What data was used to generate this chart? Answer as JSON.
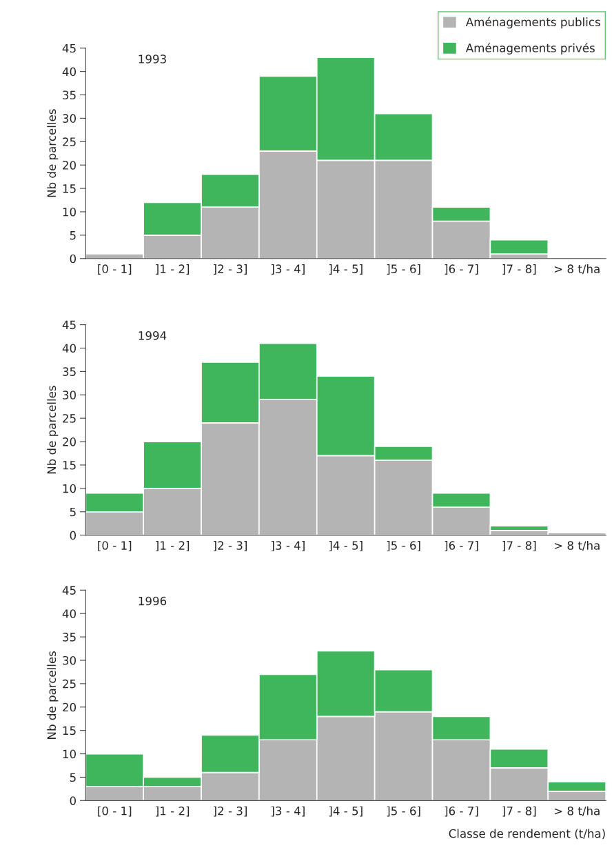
{
  "chart_data": [
    {
      "type": "bar",
      "stacked": true,
      "title": "1993",
      "ylabel": "Nb de parcelles",
      "categories": [
        "[0 - 1]",
        "]1 - 2]",
        "]2 - 3]",
        "]3 - 4]",
        "]4 - 5]",
        "]5 - 6]",
        "]6 - 7]",
        "]7 - 8]",
        "> 8 t/ha"
      ],
      "ylim": [
        0,
        45
      ],
      "yticks": [
        0,
        5,
        10,
        15,
        20,
        25,
        30,
        35,
        40,
        45
      ],
      "legend": "top right",
      "grid": false,
      "series": [
        {
          "name": "Aménagements publics",
          "color": "#b4b4b4",
          "values": [
            1,
            5,
            11,
            23,
            21,
            21,
            8,
            1,
            0
          ]
        },
        {
          "name": "Aménagements privés",
          "color": "#3fb65c",
          "values": [
            0,
            7,
            7,
            16,
            22,
            10,
            3,
            3,
            0
          ]
        }
      ]
    },
    {
      "type": "bar",
      "stacked": true,
      "title": "1994",
      "ylabel": "Nb de parcelles",
      "categories": [
        "[0 - 1]",
        "]1 - 2]",
        "]2 - 3]",
        "]3 - 4]",
        "]4 - 5]",
        "]5 - 6]",
        "]6 - 7]",
        "]7 - 8]",
        "> 8 t/ha"
      ],
      "ylim": [
        0,
        45
      ],
      "yticks": [
        0,
        5,
        10,
        15,
        20,
        25,
        30,
        35,
        40,
        45
      ],
      "grid": false,
      "series": [
        {
          "color": "#b4b4b4",
          "values": [
            5,
            10,
            24,
            29,
            17,
            16,
            6,
            1,
            0.5
          ]
        },
        {
          "color": "#3fb65c",
          "values": [
            4,
            10,
            13,
            12,
            17,
            3,
            3,
            1,
            0
          ]
        }
      ]
    },
    {
      "type": "bar",
      "stacked": true,
      "title": "1996",
      "ylabel": "Nb de parcelles",
      "xlabel": "Classe de rendement (t/ha)",
      "categories": [
        "[0 - 1]",
        "]1 - 2]",
        "]2 - 3]",
        "]3 - 4]",
        "]4 - 5]",
        "]5 - 6]",
        "]6 - 7]",
        "]7 - 8]",
        "> 8 t/ha"
      ],
      "ylim": [
        0,
        45
      ],
      "yticks": [
        0,
        5,
        10,
        15,
        20,
        25,
        30,
        35,
        40,
        45
      ],
      "grid": false,
      "series": [
        {
          "color": "#b4b4b4",
          "values": [
            3,
            3,
            6,
            13,
            18,
            19,
            13,
            7,
            2
          ]
        },
        {
          "color": "#3fb65c",
          "values": [
            7,
            2,
            8,
            14,
            14,
            9,
            5,
            4,
            2
          ]
        }
      ]
    }
  ]
}
